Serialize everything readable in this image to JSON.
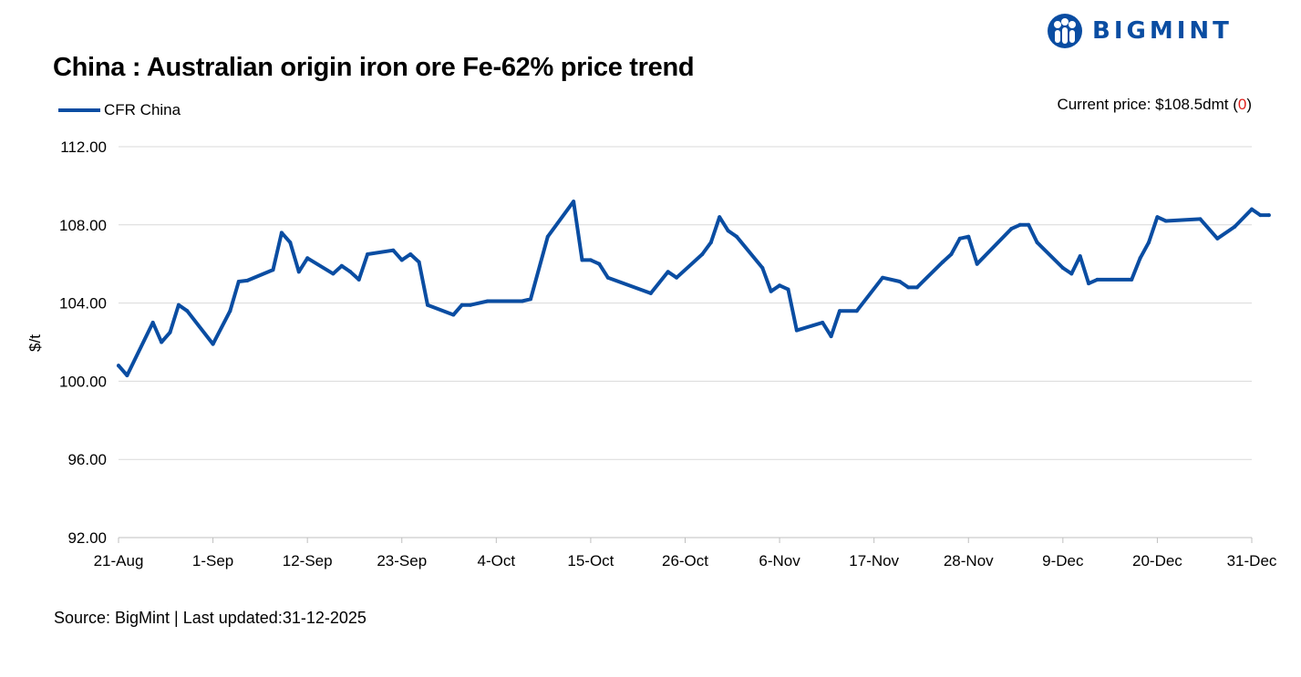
{
  "brand": {
    "name": "BIGMINT",
    "icon": "bigmint-people-logo-icon",
    "color": "#0a4da2"
  },
  "header": {
    "title": "China : Australian origin iron ore Fe-62% price trend",
    "current_price_label": "Current price: $108.5dmt (",
    "current_price_change": "0",
    "current_price_close": ")",
    "change_color": "#e0201c"
  },
  "footer": {
    "source": "Source: BigMint | Last updated:31-12-2025"
  },
  "chart_data": {
    "type": "line",
    "ylabel": "$/t",
    "xlabel": "",
    "ylim": [
      92,
      112
    ],
    "y_ticks": [
      "112.00",
      "108.00",
      "104.00",
      "100.00",
      "96.00",
      "92.00"
    ],
    "x_ticks": [
      "21-Aug",
      "1-Sep",
      "12-Sep",
      "23-Sep",
      "4-Oct",
      "15-Oct",
      "26-Oct",
      "6-Nov",
      "17-Nov",
      "28-Nov",
      "9-Dec",
      "20-Dec",
      "31-Dec"
    ],
    "grid": "horizontal",
    "legend_position": "top-left",
    "series": [
      {
        "name": "CFR China",
        "color": "#0a4da2",
        "points": [
          [
            "21-Aug",
            100.8
          ],
          [
            "22-Aug",
            100.3
          ],
          [
            "25-Aug",
            103.0
          ],
          [
            "26-Aug",
            102.0
          ],
          [
            "27-Aug",
            102.5
          ],
          [
            "28-Aug",
            103.9
          ],
          [
            "29-Aug",
            103.6
          ],
          [
            "1-Sep",
            101.9
          ],
          [
            "3-Sep",
            103.6
          ],
          [
            "4-Sep",
            105.1
          ],
          [
            "5-Sep",
            105.15
          ],
          [
            "8-Sep",
            105.7
          ],
          [
            "9-Sep",
            107.6
          ],
          [
            "10-Sep",
            107.1
          ],
          [
            "11-Sep",
            105.6
          ],
          [
            "12-Sep",
            106.3
          ],
          [
            "15-Sep",
            105.5
          ],
          [
            "16-Sep",
            105.9
          ],
          [
            "17-Sep",
            105.6
          ],
          [
            "18-Sep",
            105.2
          ],
          [
            "19-Sep",
            106.5
          ],
          [
            "22-Sep",
            106.7
          ],
          [
            "23-Sep",
            106.2
          ],
          [
            "24-Sep",
            106.5
          ],
          [
            "25-Sep",
            106.1
          ],
          [
            "26-Sep",
            103.9
          ],
          [
            "29-Sep",
            103.4
          ],
          [
            "30-Sep",
            103.9
          ],
          [
            "1-Oct",
            103.9
          ],
          [
            "3-Oct",
            104.1
          ],
          [
            "7-Oct",
            104.1
          ],
          [
            "8-Oct",
            104.2
          ],
          [
            "10-Oct",
            107.4
          ],
          [
            "13-Oct",
            109.2
          ],
          [
            "14-Oct",
            106.2
          ],
          [
            "15-Oct",
            106.2
          ],
          [
            "16-Oct",
            106.0
          ],
          [
            "17-Oct",
            105.3
          ],
          [
            "22-Oct",
            104.5
          ],
          [
            "24-Oct",
            105.6
          ],
          [
            "25-Oct",
            105.3
          ],
          [
            "28-Oct",
            106.5
          ],
          [
            "29-Oct",
            107.1
          ],
          [
            "30-Oct",
            108.4
          ],
          [
            "31-Oct",
            107.7
          ],
          [
            "1-Nov",
            107.4
          ],
          [
            "4-Nov",
            105.8
          ],
          [
            "5-Nov",
            104.6
          ],
          [
            "6-Nov",
            104.9
          ],
          [
            "7-Nov",
            104.7
          ],
          [
            "8-Nov",
            102.6
          ],
          [
            "11-Nov",
            103.0
          ],
          [
            "12-Nov",
            102.3
          ],
          [
            "13-Nov",
            103.6
          ],
          [
            "15-Nov",
            103.6
          ],
          [
            "18-Nov",
            105.3
          ],
          [
            "20-Nov",
            105.1
          ],
          [
            "21-Nov",
            104.8
          ],
          [
            "22-Nov",
            104.8
          ],
          [
            "25-Nov",
            106.1
          ],
          [
            "26-Nov",
            106.5
          ],
          [
            "27-Nov",
            107.3
          ],
          [
            "28-Nov",
            107.4
          ],
          [
            "29-Nov",
            106.0
          ],
          [
            "3-Dec",
            107.8
          ],
          [
            "4-Dec",
            108.0
          ],
          [
            "5-Dec",
            108.0
          ],
          [
            "6-Dec",
            107.1
          ],
          [
            "9-Dec",
            105.8
          ],
          [
            "10-Dec",
            105.5
          ],
          [
            "11-Dec",
            106.4
          ],
          [
            "12-Dec",
            105.0
          ],
          [
            "13-Dec",
            105.2
          ],
          [
            "17-Dec",
            105.2
          ],
          [
            "18-Dec",
            106.3
          ],
          [
            "19-Dec",
            107.1
          ],
          [
            "20-Dec",
            108.4
          ],
          [
            "21-Dec",
            108.2
          ],
          [
            "25-Dec",
            108.3
          ],
          [
            "27-Dec",
            107.3
          ],
          [
            "29-Dec",
            107.9
          ],
          [
            "31-Dec",
            108.8
          ],
          [
            "1-Jan",
            108.5
          ],
          [
            "2-Jan",
            108.5
          ]
        ]
      }
    ]
  }
}
